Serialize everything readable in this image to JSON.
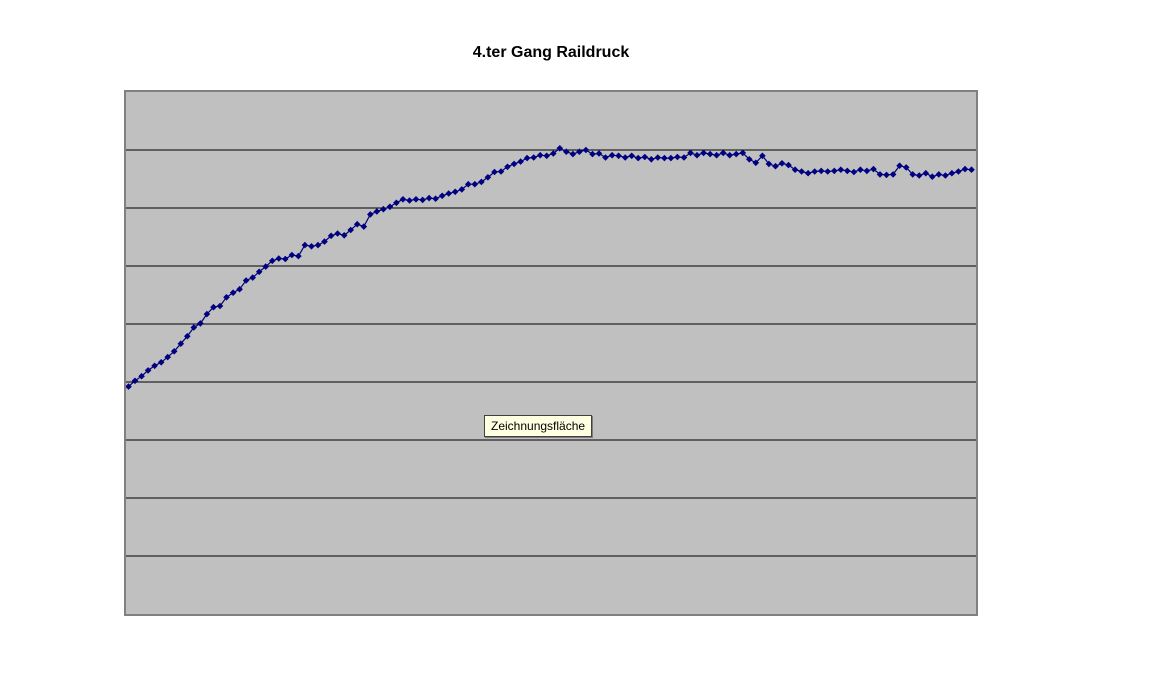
{
  "page": {
    "background": "#FFFFFF"
  },
  "chart": {
    "title": "4.ter Gang Raildruck",
    "tooltip_label": "Zeichnungsfläche",
    "colors": {
      "plot_bg": "#C0C0C0",
      "plot_border": "#808080",
      "gridline": "#000000",
      "series": "#000080",
      "tooltip_bg": "#FFFFE1",
      "tooltip_border": "#404040",
      "title_color": "#000000"
    }
  },
  "chart_data": {
    "type": "line",
    "title": "4.ter Gang Raildruck",
    "xlabel": "",
    "ylabel": "",
    "x_tick_labels": [],
    "y_tick_labels": [],
    "legend": "none",
    "grid": "horizontal gridlines only",
    "marker": "diamond",
    "note": "No axis tick labels are visible in the screenshot; y-values are estimated in gridline units (plot area spans 0 to 9 bands, one unit per gridline interval). x is sample index.",
    "ylim": [
      0,
      9
    ],
    "gridline_values": [
      1,
      2,
      3,
      4,
      5,
      6,
      7,
      8
    ],
    "x": "index 0..129, evenly spaced",
    "values": [
      3.92,
      4.02,
      4.1,
      4.2,
      4.28,
      4.34,
      4.43,
      4.53,
      4.66,
      4.79,
      4.94,
      5.01,
      5.17,
      5.29,
      5.31,
      5.46,
      5.54,
      5.6,
      5.75,
      5.8,
      5.9,
      5.99,
      6.09,
      6.13,
      6.12,
      6.19,
      6.17,
      6.36,
      6.34,
      6.36,
      6.42,
      6.52,
      6.56,
      6.53,
      6.62,
      6.72,
      6.68,
      6.89,
      6.94,
      6.98,
      7.02,
      7.09,
      7.15,
      7.13,
      7.15,
      7.14,
      7.17,
      7.16,
      7.21,
      7.25,
      7.28,
      7.32,
      7.41,
      7.41,
      7.45,
      7.53,
      7.62,
      7.63,
      7.71,
      7.76,
      7.8,
      7.86,
      7.87,
      7.91,
      7.9,
      7.94,
      8.03,
      7.97,
      7.93,
      7.97,
      8.0,
      7.93,
      7.94,
      7.87,
      7.91,
      7.9,
      7.87,
      7.9,
      7.86,
      7.88,
      7.84,
      7.87,
      7.86,
      7.86,
      7.88,
      7.87,
      7.95,
      7.91,
      7.95,
      7.93,
      7.91,
      7.95,
      7.91,
      7.93,
      7.95,
      7.84,
      7.78,
      7.9,
      7.76,
      7.72,
      7.77,
      7.74,
      7.66,
      7.63,
      7.6,
      7.63,
      7.64,
      7.63,
      7.64,
      7.66,
      7.64,
      7.62,
      7.66,
      7.64,
      7.67,
      7.58,
      7.57,
      7.58,
      7.73,
      7.7,
      7.58,
      7.56,
      7.6,
      7.54,
      7.58,
      7.56,
      7.6,
      7.63,
      7.67,
      7.66
    ]
  }
}
